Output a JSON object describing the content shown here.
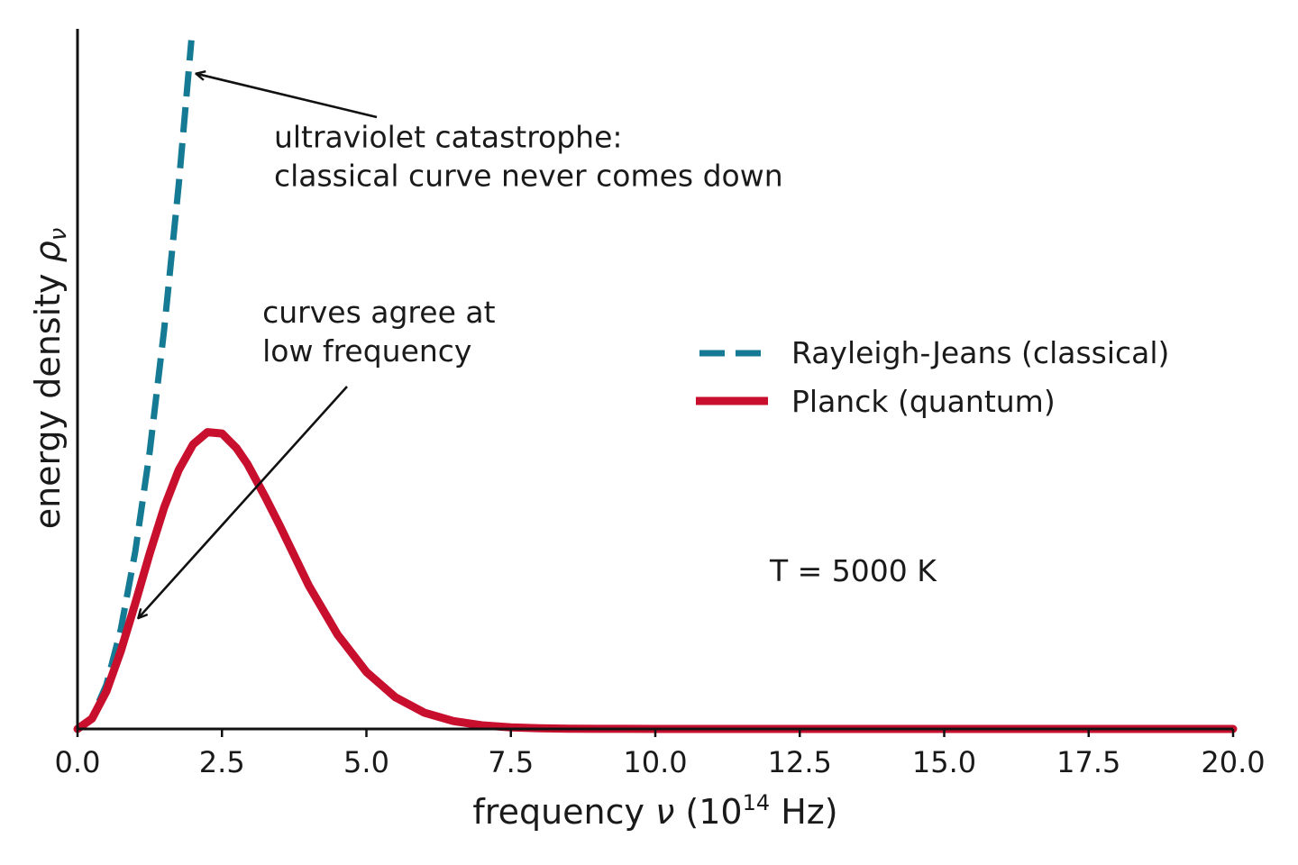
{
  "chart_data": {
    "type": "line",
    "title": "",
    "xlabel": {
      "prefix": "frequency ",
      "symbol": "ν",
      "unit_open": " (10",
      "unit_exp": "14",
      "unit_close": " Hz)"
    },
    "ylabel": {
      "prefix": "energy density ",
      "symbol": "ρ",
      "subscript": "ν"
    },
    "xlim": [
      0,
      20
    ],
    "ylim": [
      0,
      1.04
    ],
    "xticks": [
      "0.0",
      "2.5",
      "5.0",
      "7.5",
      "10.0",
      "12.5",
      "15.0",
      "17.5",
      "20.0"
    ],
    "yticks_visible": false,
    "grid": false,
    "legend_position": "center-right",
    "temperature_label": "T = 5000 K",
    "series": [
      {
        "name": "Rayleigh-Jeans (classical)",
        "style": "dashed",
        "color": "#157a93",
        "x": [
          0,
          0.25,
          0.5,
          0.75,
          1.0,
          1.25,
          1.5,
          1.75,
          1.97
        ],
        "y": [
          0,
          0.0158,
          0.0633,
          0.1424,
          0.2532,
          0.3956,
          0.5697,
          0.7754,
          0.9826
        ]
      },
      {
        "name": "Planck (quantum)",
        "style": "solid",
        "color": "#c8102e",
        "x": [
          0,
          0.25,
          0.5,
          0.75,
          1.0,
          1.25,
          1.5,
          1.75,
          2.0,
          2.25,
          2.5,
          2.75,
          2.94,
          3.25,
          3.5,
          4.0,
          4.5,
          5.0,
          5.5,
          6.0,
          6.5,
          7.0,
          7.5,
          8.0,
          8.5,
          9.0,
          9.5,
          10.0,
          10.5,
          11.0,
          11.5,
          12.0,
          13.0,
          14.0,
          15.0,
          16.0,
          17.0,
          18.0,
          19.0,
          20.0
        ],
        "y": [
          0,
          0.0146,
          0.0539,
          0.1114,
          0.1795,
          0.2503,
          0.3159,
          0.3692,
          0.406,
          0.4235,
          0.4215,
          0.4008,
          0.3779,
          0.3309,
          0.29,
          0.2049,
          0.1347,
          0.0813,
          0.0452,
          0.0233,
          0.0113,
          0.0051,
          0.0022,
          0.0009,
          0.0004,
          0.0001,
          0.0001,
          0,
          0,
          0,
          0,
          0,
          0,
          0,
          0,
          0,
          0,
          0,
          0,
          0
        ]
      }
    ],
    "annotations": [
      {
        "lines": [
          "ultraviolet catastrophe:",
          "classical curve never comes down"
        ],
        "text_xy": [
          3.4,
          0.83
        ],
        "arrow_to": [
          2.05,
          0.935
        ]
      },
      {
        "lines": [
          "curves agree at",
          "low frequency"
        ],
        "text_xy": [
          3.2,
          0.58
        ],
        "arrow_to": [
          1.05,
          0.158
        ]
      }
    ]
  }
}
